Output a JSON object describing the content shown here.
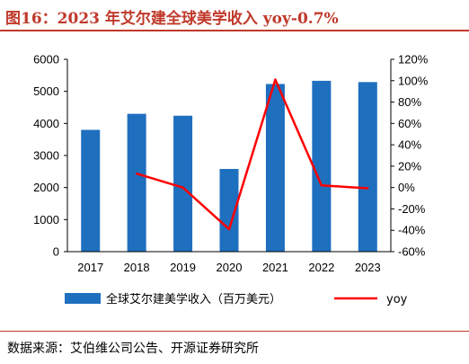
{
  "figure": {
    "title": "图16：2023 年艾尔建全球美学收入 yoy-0.7%",
    "source": "数据来源：艾伯维公司公告、开源证券研究所"
  },
  "chart_data": {
    "type": "bar",
    "categories": [
      "2017",
      "2018",
      "2019",
      "2020",
      "2021",
      "2022",
      "2023"
    ],
    "series": [
      {
        "name": "全球艾尔建美学收入（百万美元）",
        "type": "bar",
        "axis": "left",
        "color": "#1f6fbf",
        "values": [
          3800,
          4300,
          4240,
          2580,
          5230,
          5330,
          5290
        ]
      },
      {
        "name": "yoy",
        "type": "line",
        "axis": "right",
        "color": "#ff0000",
        "values": [
          null,
          13,
          0,
          -39,
          101,
          2,
          -0.7
        ]
      }
    ],
    "y_left": {
      "min": 0,
      "max": 6000,
      "step": 1000,
      "ticks": [
        "0",
        "1000",
        "2000",
        "3000",
        "4000",
        "5000",
        "6000"
      ]
    },
    "y_right": {
      "min": -60,
      "max": 120,
      "step": 20,
      "ticks": [
        "-60%",
        "-40%",
        "-20%",
        "0%",
        "20%",
        "40%",
        "60%",
        "80%",
        "100%",
        "120%"
      ]
    },
    "grid": false,
    "legend_position": "bottom"
  }
}
